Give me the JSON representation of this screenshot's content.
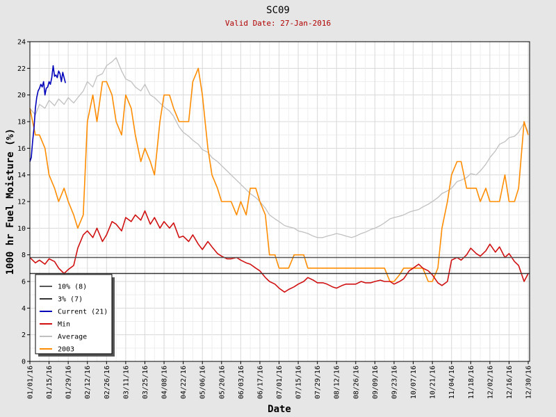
{
  "chart_data": {
    "type": "line",
    "title": "SC09",
    "subtitle": "Valid Date: 27-Jan-2016",
    "xlabel": "Date",
    "ylabel": "1000 hr Fuel Moisture (%)",
    "ylim": [
      0,
      24
    ],
    "yticks": [
      0,
      2,
      4,
      6,
      8,
      10,
      12,
      14,
      16,
      18,
      20,
      22,
      24
    ],
    "xlim": [
      "01/01/16",
      "12/31/16"
    ],
    "xticks": [
      "01/01/16",
      "01/15/16",
      "01/29/16",
      "02/12/16",
      "02/26/16",
      "03/11/16",
      "03/25/16",
      "04/08/16",
      "04/22/16",
      "05/06/16",
      "05/20/16",
      "06/03/16",
      "06/17/16",
      "07/01/16",
      "07/15/16",
      "07/29/16",
      "08/12/16",
      "08/26/16",
      "09/09/16",
      "09/23/16",
      "10/07/16",
      "10/21/16",
      "11/04/16",
      "11/18/16",
      "12/02/16",
      "12/16/16",
      "12/30/16"
    ],
    "grid": true,
    "legend_position": "bottom-left",
    "reference_lines": [
      {
        "name": "10% (8)",
        "value": 7.8,
        "color": "#555555"
      },
      {
        "name": "3% (7)",
        "value": 6.6,
        "color": "#333333"
      }
    ],
    "series": [
      {
        "name": "10% (8)",
        "color": "#555555",
        "x": [
          "01/01/16",
          "12/31/16"
        ],
        "values": [
          7.8,
          7.8
        ]
      },
      {
        "name": "3% (7)",
        "color": "#333333",
        "x": [
          "01/01/16",
          "12/31/16"
        ],
        "values": [
          6.6,
          6.6
        ]
      },
      {
        "name": "Current (21)",
        "color": "#0000bb",
        "x": [
          "01/01/16",
          "01/02/16",
          "01/03/16",
          "01/04/16",
          "01/05/16",
          "01/06/16",
          "01/07/16",
          "01/08/16",
          "01/09/16",
          "01/10/16",
          "01/11/16",
          "01/12/16",
          "01/13/16",
          "01/14/16",
          "01/15/16",
          "01/16/16",
          "01/17/16",
          "01/18/16",
          "01/19/16",
          "01/20/16",
          "01/21/16",
          "01/22/16",
          "01/23/16",
          "01/24/16",
          "01/25/16",
          "01/26/16",
          "01/27/16"
        ],
        "values": [
          15.0,
          15.3,
          16.5,
          17.5,
          19.0,
          19.8,
          20.3,
          20.5,
          20.8,
          20.6,
          21.0,
          20.0,
          20.5,
          20.6,
          21.0,
          20.8,
          21.3,
          22.2,
          21.4,
          21.5,
          21.3,
          21.8,
          21.6,
          21.0,
          21.7,
          21.3,
          20.9
        ]
      },
      {
        "name": "Min",
        "color": "#d01010",
        "x": [
          "01/01/16",
          "01/05/16",
          "01/08/16",
          "01/12/16",
          "01/15/16",
          "01/19/16",
          "01/22/16",
          "01/26/16",
          "01/29/16",
          "02/02/16",
          "02/05/16",
          "02/09/16",
          "02/12/16",
          "02/16/16",
          "02/19/16",
          "02/23/16",
          "02/26/16",
          "03/01/16",
          "03/04/16",
          "03/08/16",
          "03/11/16",
          "03/15/16",
          "03/18/16",
          "03/22/16",
          "03/25/16",
          "03/29/16",
          "04/01/16",
          "04/05/16",
          "04/08/16",
          "04/12/16",
          "04/15/16",
          "04/19/16",
          "04/22/16",
          "04/26/16",
          "04/29/16",
          "05/03/16",
          "05/06/16",
          "05/10/16",
          "05/13/16",
          "05/17/16",
          "05/20/16",
          "05/24/16",
          "05/27/16",
          "05/31/16",
          "06/03/16",
          "06/07/16",
          "06/10/16",
          "06/14/16",
          "06/17/16",
          "06/21/16",
          "06/24/16",
          "06/28/16",
          "07/01/16",
          "07/05/16",
          "07/08/16",
          "07/12/16",
          "07/15/16",
          "07/19/16",
          "07/22/16",
          "07/26/16",
          "07/29/16",
          "08/02/16",
          "08/05/16",
          "08/09/16",
          "08/12/16",
          "08/16/16",
          "08/19/16",
          "08/23/16",
          "08/26/16",
          "08/30/16",
          "09/02/16",
          "09/06/16",
          "09/09/16",
          "09/13/16",
          "09/16/16",
          "09/20/16",
          "09/23/16",
          "09/27/16",
          "09/30/16",
          "10/04/16",
          "10/07/16",
          "10/11/16",
          "10/14/16",
          "10/18/16",
          "10/21/16",
          "10/25/16",
          "10/28/16",
          "11/01/16",
          "11/04/16",
          "11/08/16",
          "11/11/16",
          "11/15/16",
          "11/18/16",
          "11/22/16",
          "11/25/16",
          "11/29/16",
          "12/02/16",
          "12/06/16",
          "12/09/16",
          "12/13/16",
          "12/16/16",
          "12/20/16",
          "12/23/16",
          "12/27/16",
          "12/30/16"
        ],
        "values": [
          7.8,
          7.4,
          7.6,
          7.3,
          7.7,
          7.5,
          7.0,
          6.6,
          6.9,
          7.2,
          8.5,
          9.5,
          9.8,
          9.3,
          10.0,
          9.0,
          9.5,
          10.5,
          10.3,
          9.8,
          10.8,
          10.5,
          11.0,
          10.6,
          11.3,
          10.3,
          10.8,
          10.0,
          10.5,
          10.0,
          10.4,
          9.3,
          9.4,
          9.0,
          9.5,
          8.8,
          8.4,
          9.0,
          8.6,
          8.1,
          7.9,
          7.7,
          7.7,
          7.8,
          7.6,
          7.4,
          7.3,
          7.0,
          6.8,
          6.3,
          6.0,
          5.8,
          5.5,
          5.2,
          5.4,
          5.6,
          5.8,
          6.0,
          6.3,
          6.1,
          5.9,
          5.9,
          5.8,
          5.6,
          5.5,
          5.7,
          5.8,
          5.8,
          5.8,
          6.0,
          5.9,
          5.9,
          6.0,
          6.1,
          6.0,
          6.0,
          5.8,
          6.0,
          6.2,
          6.8,
          7.0,
          7.3,
          7.0,
          6.8,
          6.5,
          5.9,
          5.7,
          6.0,
          7.6,
          7.8,
          7.6,
          8.0,
          8.5,
          8.1,
          7.9,
          8.3,
          8.8,
          8.2,
          8.6,
          7.8,
          8.1,
          7.5,
          7.2,
          6.0,
          6.6
        ]
      },
      {
        "name": "Average",
        "color": "#c0c0c0",
        "x": [
          "01/01/16",
          "01/05/16",
          "01/08/16",
          "01/12/16",
          "01/15/16",
          "01/19/16",
          "01/22/16",
          "01/26/16",
          "01/29/16",
          "02/02/16",
          "02/05/16",
          "02/09/16",
          "02/12/16",
          "02/16/16",
          "02/19/16",
          "02/23/16",
          "02/26/16",
          "03/01/16",
          "03/04/16",
          "03/08/16",
          "03/11/16",
          "03/15/16",
          "03/18/16",
          "03/22/16",
          "03/25/16",
          "03/29/16",
          "04/01/16",
          "04/05/16",
          "04/08/16",
          "04/12/16",
          "04/15/16",
          "04/19/16",
          "04/22/16",
          "04/26/16",
          "04/29/16",
          "05/03/16",
          "05/06/16",
          "05/10/16",
          "05/13/16",
          "05/17/16",
          "05/20/16",
          "05/24/16",
          "05/27/16",
          "05/31/16",
          "06/03/16",
          "06/07/16",
          "06/10/16",
          "06/14/16",
          "06/17/16",
          "06/21/16",
          "06/24/16",
          "06/28/16",
          "07/01/16",
          "07/05/16",
          "07/08/16",
          "07/12/16",
          "07/15/16",
          "07/19/16",
          "07/22/16",
          "07/26/16",
          "07/29/16",
          "08/02/16",
          "08/05/16",
          "08/09/16",
          "08/12/16",
          "08/16/16",
          "08/19/16",
          "08/23/16",
          "08/26/16",
          "08/30/16",
          "09/02/16",
          "09/06/16",
          "09/09/16",
          "09/13/16",
          "09/16/16",
          "09/20/16",
          "09/23/16",
          "09/27/16",
          "09/30/16",
          "10/04/16",
          "10/07/16",
          "10/11/16",
          "10/14/16",
          "10/18/16",
          "10/21/16",
          "10/25/16",
          "10/28/16",
          "11/01/16",
          "11/04/16",
          "11/08/16",
          "11/11/16",
          "11/15/16",
          "11/18/16",
          "11/22/16",
          "11/25/16",
          "11/29/16",
          "12/02/16",
          "12/06/16",
          "12/09/16",
          "12/13/16",
          "12/16/16",
          "12/20/16",
          "12/23/16",
          "12/27/16",
          "12/30/16"
        ],
        "values": [
          19.0,
          18.5,
          19.3,
          19.0,
          19.6,
          19.2,
          19.7,
          19.3,
          19.8,
          19.4,
          19.8,
          20.3,
          21.0,
          20.6,
          21.4,
          21.6,
          22.2,
          22.5,
          22.8,
          21.8,
          21.2,
          21.0,
          20.6,
          20.3,
          20.8,
          20.0,
          19.8,
          19.4,
          19.1,
          18.8,
          18.4,
          17.6,
          17.2,
          16.9,
          16.6,
          16.3,
          15.9,
          15.7,
          15.3,
          15.0,
          14.7,
          14.3,
          14.0,
          13.6,
          13.3,
          12.9,
          12.6,
          12.3,
          12.0,
          11.5,
          11.0,
          10.7,
          10.5,
          10.2,
          10.1,
          10.0,
          9.8,
          9.7,
          9.6,
          9.4,
          9.3,
          9.3,
          9.4,
          9.5,
          9.6,
          9.5,
          9.4,
          9.3,
          9.4,
          9.6,
          9.7,
          9.9,
          10.0,
          10.2,
          10.4,
          10.7,
          10.8,
          10.9,
          11.0,
          11.2,
          11.3,
          11.4,
          11.6,
          11.8,
          12.0,
          12.3,
          12.6,
          12.8,
          13.0,
          13.5,
          13.6,
          13.8,
          14.1,
          14.0,
          14.3,
          14.8,
          15.3,
          15.8,
          16.3,
          16.5,
          16.8,
          16.9,
          17.2,
          17.9,
          17.2
        ]
      },
      {
        "name": "2003",
        "color": "#ff8c00",
        "x": [
          "01/01/16",
          "01/05/16",
          "01/08/16",
          "01/12/16",
          "01/15/16",
          "01/19/16",
          "01/22/16",
          "01/26/16",
          "01/29/16",
          "02/02/16",
          "02/05/16",
          "02/09/16",
          "02/12/16",
          "02/16/16",
          "02/19/16",
          "02/23/16",
          "02/26/16",
          "03/01/16",
          "03/04/16",
          "03/08/16",
          "03/11/16",
          "03/15/16",
          "03/18/16",
          "03/22/16",
          "03/25/16",
          "03/29/16",
          "04/01/16",
          "04/05/16",
          "04/08/16",
          "04/12/16",
          "04/15/16",
          "04/19/16",
          "04/22/16",
          "04/26/16",
          "04/29/16",
          "05/03/16",
          "05/06/16",
          "05/10/16",
          "05/13/16",
          "05/17/16",
          "05/20/16",
          "05/24/16",
          "05/27/16",
          "05/31/16",
          "06/03/16",
          "06/07/16",
          "06/10/16",
          "06/14/16",
          "06/17/16",
          "06/21/16",
          "06/24/16",
          "06/28/16",
          "07/01/16",
          "07/05/16",
          "07/08/16",
          "07/12/16",
          "07/15/16",
          "07/19/16",
          "07/22/16",
          "07/26/16",
          "07/29/16",
          "08/02/16",
          "08/05/16",
          "08/09/16",
          "08/12/16",
          "08/16/16",
          "08/19/16",
          "08/23/16",
          "08/26/16",
          "08/30/16",
          "09/02/16",
          "09/06/16",
          "09/09/16",
          "09/13/16",
          "09/16/16",
          "09/20/16",
          "09/23/16",
          "09/27/16",
          "09/30/16",
          "10/04/16",
          "10/07/16",
          "10/11/16",
          "10/14/16",
          "10/18/16",
          "10/21/16",
          "10/25/16",
          "10/28/16",
          "11/01/16",
          "11/04/16",
          "11/08/16",
          "11/11/16",
          "11/15/16",
          "11/18/16",
          "11/22/16",
          "11/25/16",
          "11/29/16",
          "12/02/16",
          "12/06/16",
          "12/09/16",
          "12/13/16",
          "12/16/16",
          "12/20/16",
          "12/23/16",
          "12/27/16",
          "12/30/16"
        ],
        "values": [
          19.0,
          17.0,
          17.0,
          16.0,
          14.0,
          13.0,
          12.0,
          13.0,
          12.0,
          11.0,
          10.0,
          11.0,
          18.0,
          20.0,
          18.0,
          21.0,
          21.0,
          20.0,
          18.0,
          17.0,
          20.0,
          19.0,
          17.0,
          15.0,
          16.0,
          15.0,
          14.0,
          18.0,
          20.0,
          20.0,
          19.0,
          18.0,
          18.0,
          18.0,
          21.0,
          22.0,
          20.0,
          16.0,
          14.0,
          13.0,
          12.0,
          12.0,
          12.0,
          11.0,
          12.0,
          11.0,
          13.0,
          13.0,
          12.0,
          11.0,
          8.0,
          8.0,
          7.0,
          7.0,
          7.0,
          8.0,
          8.0,
          8.0,
          7.0,
          7.0,
          7.0,
          7.0,
          7.0,
          7.0,
          7.0,
          7.0,
          7.0,
          7.0,
          7.0,
          7.0,
          7.0,
          7.0,
          7.0,
          7.0,
          7.0,
          6.0,
          6.0,
          6.5,
          7.0,
          7.0,
          7.0,
          7.0,
          7.0,
          6.0,
          6.0,
          7.0,
          10.0,
          12.0,
          14.0,
          15.0,
          15.0,
          13.0,
          13.0,
          13.0,
          12.0,
          13.0,
          12.0,
          12.0,
          12.0,
          14.0,
          12.0,
          12.0,
          13.0,
          18.0,
          17.0
        ]
      }
    ]
  }
}
